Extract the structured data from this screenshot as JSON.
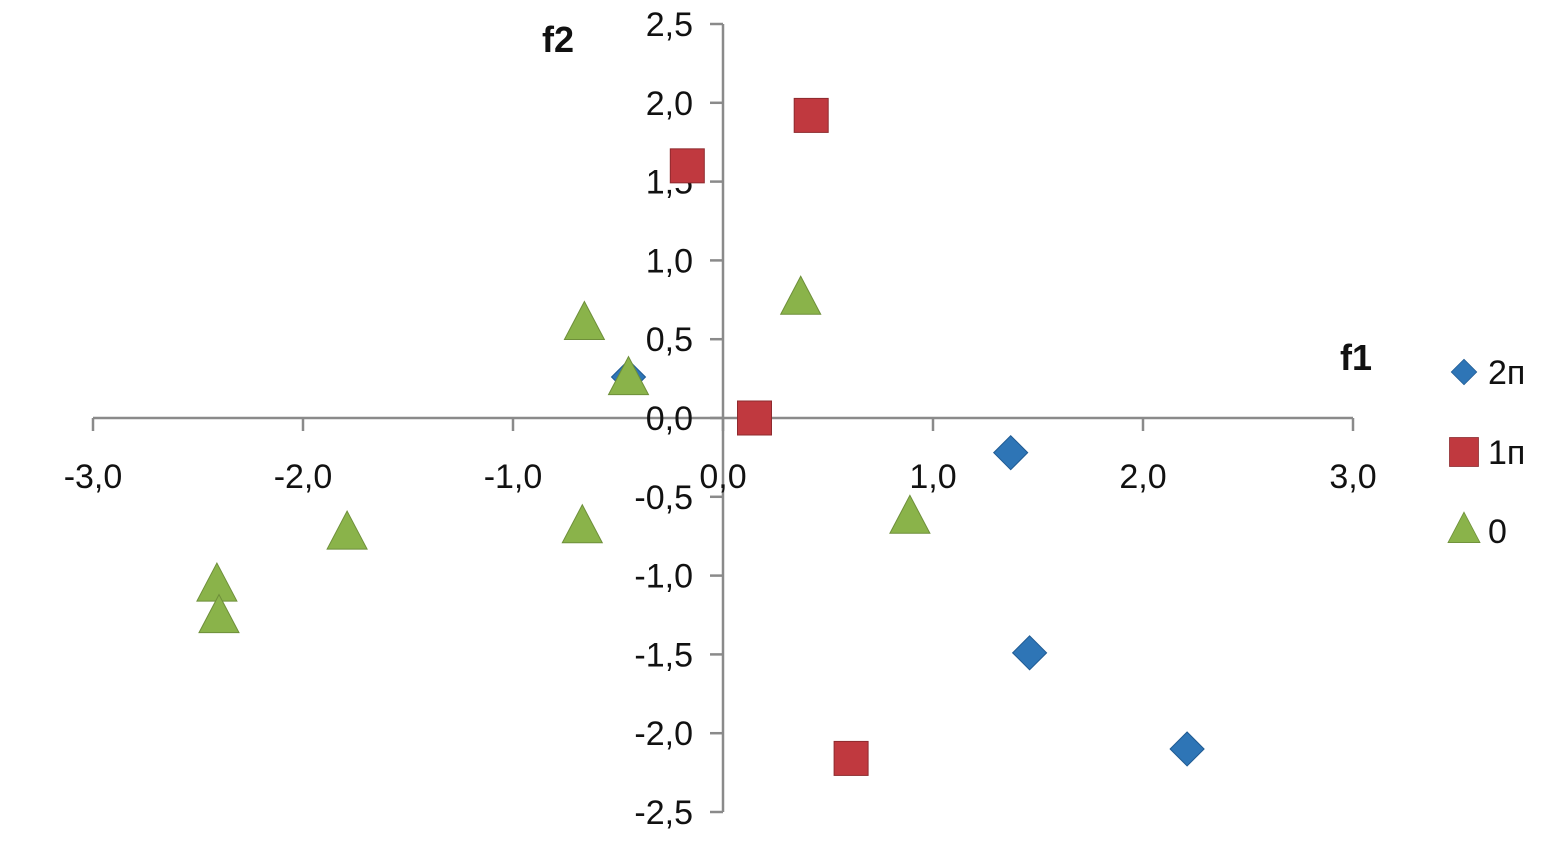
{
  "chart_data": {
    "type": "scatter",
    "x_axis": {
      "label": "f1",
      "range": [
        -3.0,
        3.0
      ],
      "ticks": [
        "-3,0",
        "-2,0",
        "-1,0",
        "0,0",
        "1,0",
        "2,0",
        "3,0"
      ],
      "tick_values": [
        -3,
        -2,
        -1,
        0,
        1,
        2,
        3
      ]
    },
    "y_axis": {
      "label": "f2",
      "range": [
        -2.5,
        2.5
      ],
      "ticks": [
        "-2,5",
        "-2,0",
        "-1,5",
        "-1,0",
        "-0,5",
        "0,0",
        "0,5",
        "1,0",
        "1,5",
        "2,0",
        "2,5"
      ],
      "tick_values": [
        -2.5,
        -2.0,
        -1.5,
        -1.0,
        -0.5,
        0.0,
        0.5,
        1.0,
        1.5,
        2.0,
        2.5
      ]
    },
    "grid": false,
    "legend_position": "right",
    "series": [
      {
        "name": "2п",
        "marker": "diamond",
        "color": "#2E75B6",
        "points": [
          {
            "x": -0.45,
            "y": 0.26
          },
          {
            "x": 1.37,
            "y": -0.22
          },
          {
            "x": 1.46,
            "y": -1.49
          },
          {
            "x": 2.21,
            "y": -2.1
          }
        ]
      },
      {
        "name": "1п",
        "marker": "square",
        "color": "#C0393F",
        "points": [
          {
            "x": -0.17,
            "y": 1.6
          },
          {
            "x": 0.42,
            "y": 1.92
          },
          {
            "x": 0.15,
            "y": 0.0
          },
          {
            "x": 0.61,
            "y": -2.16
          }
        ]
      },
      {
        "name": "0",
        "marker": "triangle",
        "color": "#8AB34A",
        "points": [
          {
            "x": -0.66,
            "y": 0.59
          },
          {
            "x": -0.45,
            "y": 0.24
          },
          {
            "x": 0.37,
            "y": 0.75
          },
          {
            "x": -0.67,
            "y": -0.7
          },
          {
            "x": 0.89,
            "y": -0.64
          },
          {
            "x": -1.79,
            "y": -0.74
          },
          {
            "x": -2.41,
            "y": -1.07
          },
          {
            "x": -2.4,
            "y": -1.27
          }
        ]
      }
    ]
  }
}
